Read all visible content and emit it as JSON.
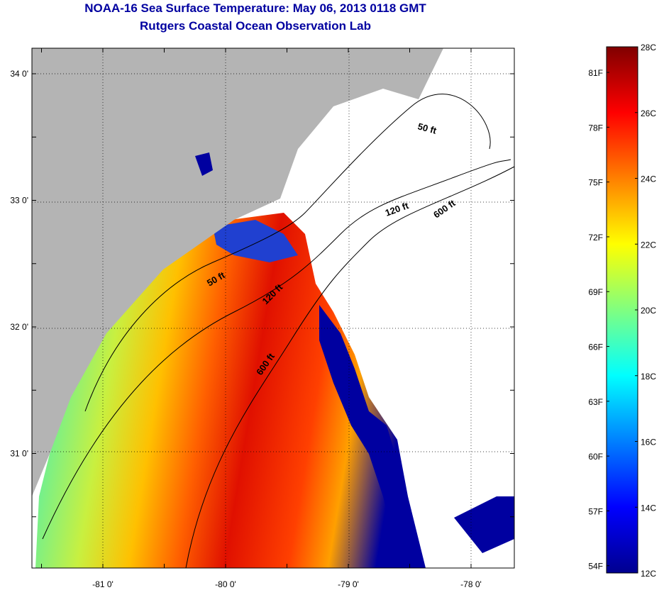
{
  "title": "NOAA-16 Sea Surface Temperature:  May 06, 2013 0118 GMT",
  "subtitle": "Rutgers Coastal Ocean Observation Lab",
  "map": {
    "lat_ticks": [
      {
        "value": 34,
        "label": "34 0'"
      },
      {
        "value": 33,
        "label": "33 0'"
      },
      {
        "value": 32,
        "label": "32 0'"
      },
      {
        "value": 31,
        "label": "31 0'"
      }
    ],
    "lon_ticks": [
      {
        "value": -81,
        "label": "-81 0'"
      },
      {
        "value": -80,
        "label": "-80 0'"
      },
      {
        "value": -79,
        "label": "-79 0'"
      },
      {
        "value": -78,
        "label": "-78 0'"
      }
    ],
    "contour_labels": [
      "50 ft",
      "120 ft",
      "600 ft",
      "50 ft",
      "120 ft",
      "600 ft"
    ],
    "land_color": "#b4b4b4"
  },
  "colorbar": {
    "f_labels": [
      "81F",
      "78F",
      "75F",
      "72F",
      "69F",
      "66F",
      "63F",
      "60F",
      "57F",
      "54F"
    ],
    "c_labels": [
      "28C",
      "26C",
      "24C",
      "22C",
      "20C",
      "18C",
      "16C",
      "14C",
      "12C"
    ],
    "range_c": [
      12,
      28
    ]
  }
}
